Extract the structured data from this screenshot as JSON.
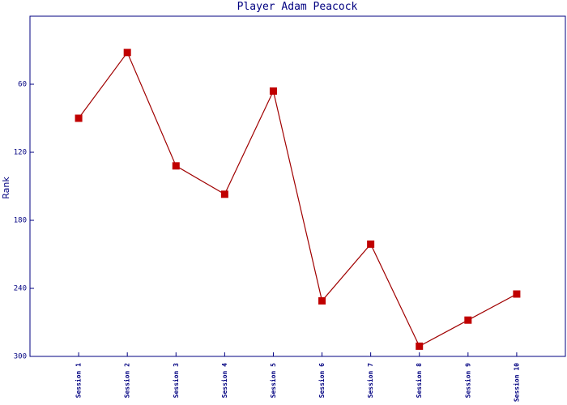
{
  "chart_data": {
    "type": "line",
    "title": "Player Adam Peacock",
    "y_label": "Rank",
    "categories": [
      "Session 1",
      "Session 2",
      "Session 3",
      "Session 4",
      "Session 5",
      "Session 6",
      "Session 7",
      "Session 8",
      "Session 9",
      "Session 10"
    ],
    "values": [
      90,
      32,
      132,
      157,
      66,
      251,
      201,
      291,
      268,
      245
    ],
    "color": "#a00000",
    "marker_color": "#c00000",
    "ylim": [
      0,
      300
    ],
    "y_inverted": true,
    "yticks": [
      60,
      120,
      180,
      240,
      300
    ]
  }
}
